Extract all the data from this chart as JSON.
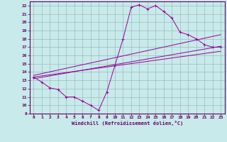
{
  "title": "",
  "xlabel": "Windchill (Refroidissement éolien,°C)",
  "ylabel": "",
  "bg_color": "#c8eaea",
  "line_color": "#990099",
  "grid_color": "#99bbbb",
  "xlim": [
    -0.5,
    23.5
  ],
  "ylim": [
    9,
    22.5
  ],
  "xticks": [
    0,
    1,
    2,
    3,
    4,
    5,
    6,
    7,
    8,
    9,
    10,
    11,
    12,
    13,
    14,
    15,
    16,
    17,
    18,
    19,
    20,
    21,
    22,
    23
  ],
  "yticks": [
    9,
    10,
    11,
    12,
    13,
    14,
    15,
    16,
    17,
    18,
    19,
    20,
    21,
    22
  ],
  "main_line_x": [
    0,
    1,
    2,
    3,
    4,
    5,
    6,
    7,
    8,
    9,
    10,
    11,
    12,
    13,
    14,
    15,
    16,
    17,
    18,
    19,
    20,
    21,
    22,
    23
  ],
  "main_line_y": [
    13.4,
    12.8,
    12.1,
    11.9,
    11.0,
    11.0,
    10.5,
    10.0,
    9.4,
    11.6,
    14.8,
    18.0,
    21.8,
    22.1,
    21.6,
    22.0,
    21.3,
    20.5,
    18.8,
    18.5,
    18.0,
    17.3,
    17.0,
    17.0
  ],
  "reg_lines": [
    {
      "x": [
        0,
        23
      ],
      "y": [
        13.4,
        16.5
      ]
    },
    {
      "x": [
        0,
        23
      ],
      "y": [
        13.2,
        17.1
      ]
    },
    {
      "x": [
        0,
        23
      ],
      "y": [
        13.6,
        18.5
      ]
    }
  ]
}
